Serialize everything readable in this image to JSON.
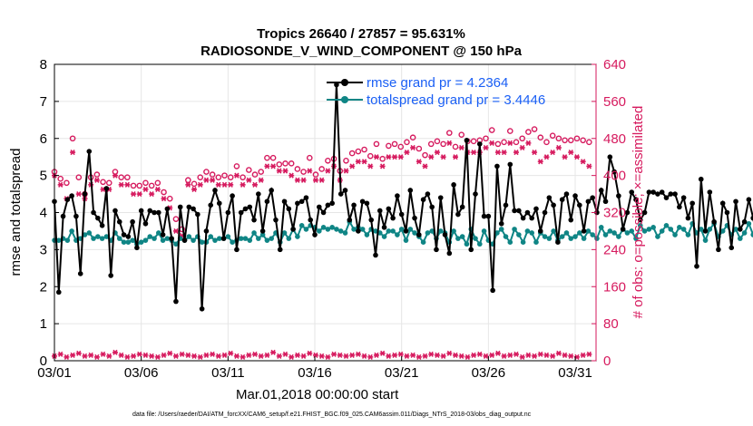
{
  "chart_data": {
    "type": "line",
    "title_line1": "Tropics 26640 / 27857 = 95.631%",
    "title_line2": "RADIOSONDE_V_WIND_COMPONENT @ 150 hPa",
    "xlabel": "Mar.01,2018 00:00:00 start",
    "ylabel_left": "rmse and totalspread",
    "ylabel_right": "# of obs: o=possible; ×=assimilated",
    "footnote": "data file: /Users/raeder/DAI/ATM_forcXX/CAM6_setup/f.e21.FHIST_BGC.f09_025.CAM6assim.011/Diags_NTrS_2018-03/obs_diag_output.nc",
    "x_range_days": [
      0,
      31.2
    ],
    "x_ticks": [
      {
        "day": 0,
        "label": "03/01"
      },
      {
        "day": 5,
        "label": "03/06"
      },
      {
        "day": 10,
        "label": "03/11"
      },
      {
        "day": 15,
        "label": "03/16"
      },
      {
        "day": 20,
        "label": "03/21"
      },
      {
        "day": 25,
        "label": "03/26"
      },
      {
        "day": 30,
        "label": "03/31"
      }
    ],
    "ylim_left": [
      0,
      8
    ],
    "y_ticks_left": [
      0,
      1,
      2,
      3,
      4,
      5,
      6,
      7,
      8
    ],
    "ylim_right": [
      0,
      640
    ],
    "y_ticks_right": [
      0,
      80,
      160,
      240,
      320,
      400,
      480,
      560,
      640
    ],
    "legend": {
      "position": "top-right",
      "rmse_label": "rmse grand pr = 4.2364",
      "spread_label": "totalspread grand pr = 3.4446"
    },
    "step_days": 0.25,
    "colors": {
      "rmse": "#000000",
      "spread": "#0f8585",
      "obs": "#d61a5e",
      "right_axis": "#d61a5e",
      "legend_text": "#1a5ff5",
      "grid": "#e6e6e6"
    },
    "series": [
      {
        "name": "rmse",
        "axis": "left",
        "values": [
          4.3,
          1.85,
          3.9,
          4.35,
          4.45,
          3.9,
          2.35,
          4.5,
          5.65,
          4.0,
          3.85,
          3.65,
          4.65,
          2.3,
          4.05,
          3.75,
          3.4,
          3.35,
          3.75,
          3.05,
          4.05,
          3.7,
          4.05,
          4.0,
          4.0,
          3.4,
          4.1,
          3.3,
          1.6,
          4.15,
          3.25,
          4.15,
          4.1,
          3.95,
          1.4,
          3.5,
          4.2,
          4.6,
          4.25,
          3.3,
          4.0,
          4.45,
          3.0,
          4.0,
          4.1,
          4.15,
          3.8,
          4.5,
          3.5,
          4.3,
          4.6,
          3.8,
          3.0,
          4.3,
          4.1,
          3.55,
          4.25,
          4.3,
          4.4,
          3.8,
          3.4,
          4.15,
          4.0,
          4.2,
          4.25,
          7.45,
          4.5,
          4.6,
          3.8,
          4.2,
          3.5,
          4.3,
          4.25,
          3.8,
          2.85,
          4.05,
          3.6,
          4.1,
          3.85,
          4.45,
          3.95,
          3.5,
          4.6,
          3.85,
          3.4,
          4.35,
          4.5,
          4.15,
          3.0,
          4.4,
          3.4,
          2.9,
          4.75,
          3.95,
          4.15,
          5.95,
          3.0,
          4.5,
          5.85,
          3.9,
          3.9,
          1.9,
          5.25,
          3.7,
          4.2,
          5.3,
          4.05,
          4.05,
          3.85,
          4.0,
          3.85,
          4.1,
          3.5,
          4.0,
          4.4,
          4.2,
          3.2,
          4.35,
          4.5,
          3.8,
          4.45,
          4.2,
          3.5,
          4.3,
          4.4,
          4.0,
          4.6,
          4.3,
          5.5,
          5.1,
          4.45,
          3.55,
          4.0,
          4.55,
          4.35,
          3.8,
          4.0,
          4.55,
          4.55,
          4.5,
          4.55,
          4.4,
          4.5,
          4.5,
          4.15,
          4.4,
          3.85,
          4.25,
          2.55,
          4.9,
          3.5,
          4.55,
          3.75,
          3.0,
          4.25,
          4.0,
          3.05,
          4.3,
          3.55,
          3.75,
          4.35,
          3.85,
          3.15,
          4.2,
          3.95,
          3.8,
          3.2,
          4.2,
          3.85,
          2.4,
          4.4,
          4.05,
          3.05,
          3.95,
          4.15,
          5.2,
          4.5,
          4.5,
          4.25,
          4.45,
          4.5
        ]
      },
      {
        "name": "totalspread",
        "axis": "left",
        "values": [
          3.25,
          3.25,
          3.3,
          3.25,
          3.5,
          3.25,
          3.3,
          3.4,
          3.45,
          3.3,
          3.35,
          3.3,
          3.35,
          3.25,
          3.45,
          3.3,
          3.2,
          3.2,
          3.25,
          3.15,
          3.2,
          3.25,
          3.35,
          3.3,
          3.45,
          3.25,
          3.3,
          3.25,
          3.15,
          3.3,
          3.25,
          3.35,
          3.25,
          3.35,
          3.2,
          3.2,
          3.35,
          3.25,
          3.3,
          3.3,
          3.35,
          3.2,
          3.25,
          3.3,
          3.3,
          3.25,
          3.45,
          3.3,
          3.4,
          3.25,
          3.3,
          3.45,
          3.2,
          3.45,
          3.3,
          3.55,
          3.35,
          3.65,
          3.55,
          3.65,
          3.6,
          3.5,
          3.6,
          3.55,
          3.6,
          3.55,
          3.5,
          3.45,
          3.75,
          3.55,
          3.6,
          3.55,
          3.4,
          3.55,
          3.5,
          3.45,
          3.35,
          3.5,
          3.5,
          3.4,
          3.55,
          3.25,
          3.55,
          3.45,
          3.35,
          3.2,
          3.45,
          3.5,
          3.3,
          3.5,
          3.45,
          3.2,
          3.5,
          3.3,
          3.35,
          3.15,
          3.55,
          3.3,
          3.15,
          3.5,
          3.25,
          3.15,
          3.45,
          3.55,
          3.35,
          3.2,
          3.55,
          3.4,
          3.2,
          3.5,
          3.45,
          3.2,
          3.45,
          3.35,
          3.3,
          3.5,
          3.25,
          3.35,
          3.45,
          3.3,
          3.35,
          3.45,
          3.3,
          3.5,
          3.4,
          3.3,
          3.6,
          3.4,
          3.5,
          3.45,
          3.35,
          3.55,
          3.45,
          3.5,
          3.3,
          3.65,
          3.5,
          3.55,
          3.6,
          3.35,
          3.5,
          3.65,
          3.55,
          3.4,
          3.6,
          3.55,
          3.4,
          3.7,
          3.45,
          3.55,
          3.25,
          3.55,
          3.7,
          3.35,
          3.5,
          3.65,
          3.4,
          3.55,
          3.3,
          3.45,
          3.7,
          3.4,
          3.6,
          3.3,
          3.45,
          3.6,
          3.25,
          3.55,
          3.5,
          3.3,
          3.65,
          3.5,
          3.8,
          3.5,
          3.6,
          3.4,
          3.8,
          3.6,
          3.35,
          2.8,
          3.75,
          4.1
        ]
      },
      {
        "name": "obs_possible",
        "axis": "right",
        "values": [
          408,
          393,
          384,
          480,
          396,
          360,
          396,
          402,
          386,
          384,
          408,
          396,
          396,
          378,
          378,
          384,
          378,
          384,
          364,
          350,
          306,
          284,
          390,
          382,
          396,
          408,
          402,
          396,
          400,
          396,
          420,
          396,
          412,
          402,
          408,
          438,
          438,
          424,
          426,
          426,
          414,
          408,
          438,
          402,
          414,
          432,
          436,
          410,
          432,
          448,
          452,
          456,
          442,
          468,
          436,
          464,
          468,
          462,
          472,
          482,
          458,
          444,
          468,
          474,
          468,
          492,
          462,
          488,
          474,
          474,
          476,
          480,
          498,
          468,
          472,
          496,
          472,
          480,
          494,
          500,
          482,
          472,
          486,
          480,
          476,
          476,
          480,
          476,
          472
        ],
        "day_step": 0.35
      },
      {
        "name": "obs_assimilated",
        "axis": "right",
        "values": [
          400,
          380,
          350,
          450,
          360,
          350,
          380,
          390,
          370,
          370,
          400,
          380,
          380,
          360,
          360,
          370,
          360,
          370,
          350,
          330,
          280,
          270,
          380,
          370,
          380,
          390,
          390,
          380,
          380,
          380,
          400,
          380,
          390,
          380,
          390,
          420,
          420,
          410,
          410,
          400,
          390,
          390,
          410,
          390,
          390,
          410,
          420,
          390,
          410,
          420,
          430,
          430,
          420,
          440,
          420,
          440,
          440,
          440,
          450,
          460,
          430,
          420,
          440,
          450,
          440,
          470,
          440,
          460,
          450,
          450,
          450,
          460,
          470,
          450,
          450,
          470,
          450,
          460,
          470,
          450,
          430,
          440,
          450,
          460,
          440,
          450,
          440,
          430,
          420
        ],
        "day_step": 0.35
      },
      {
        "name": "obs_bottom",
        "axis": "right",
        "values": [
          10,
          14,
          8,
          12,
          16,
          10,
          12,
          8,
          14,
          10,
          18,
          12,
          8,
          10,
          14,
          12,
          10,
          8,
          12,
          16,
          10,
          14,
          12,
          10,
          8,
          12,
          14,
          10,
          12,
          16,
          10,
          8,
          12,
          14,
          10,
          12,
          18,
          10,
          14,
          8,
          12,
          10,
          16,
          12,
          10,
          8,
          14,
          12,
          10,
          12,
          14,
          10,
          8,
          12,
          16,
          10,
          12,
          14,
          10,
          12,
          8,
          10,
          14,
          12,
          10,
          16,
          12,
          10,
          8,
          12,
          14,
          10,
          12,
          16,
          10,
          12,
          14,
          8,
          12,
          10,
          14,
          12,
          10,
          16,
          12,
          10,
          8,
          12,
          14
        ],
        "day_step": 0.35
      }
    ]
  }
}
